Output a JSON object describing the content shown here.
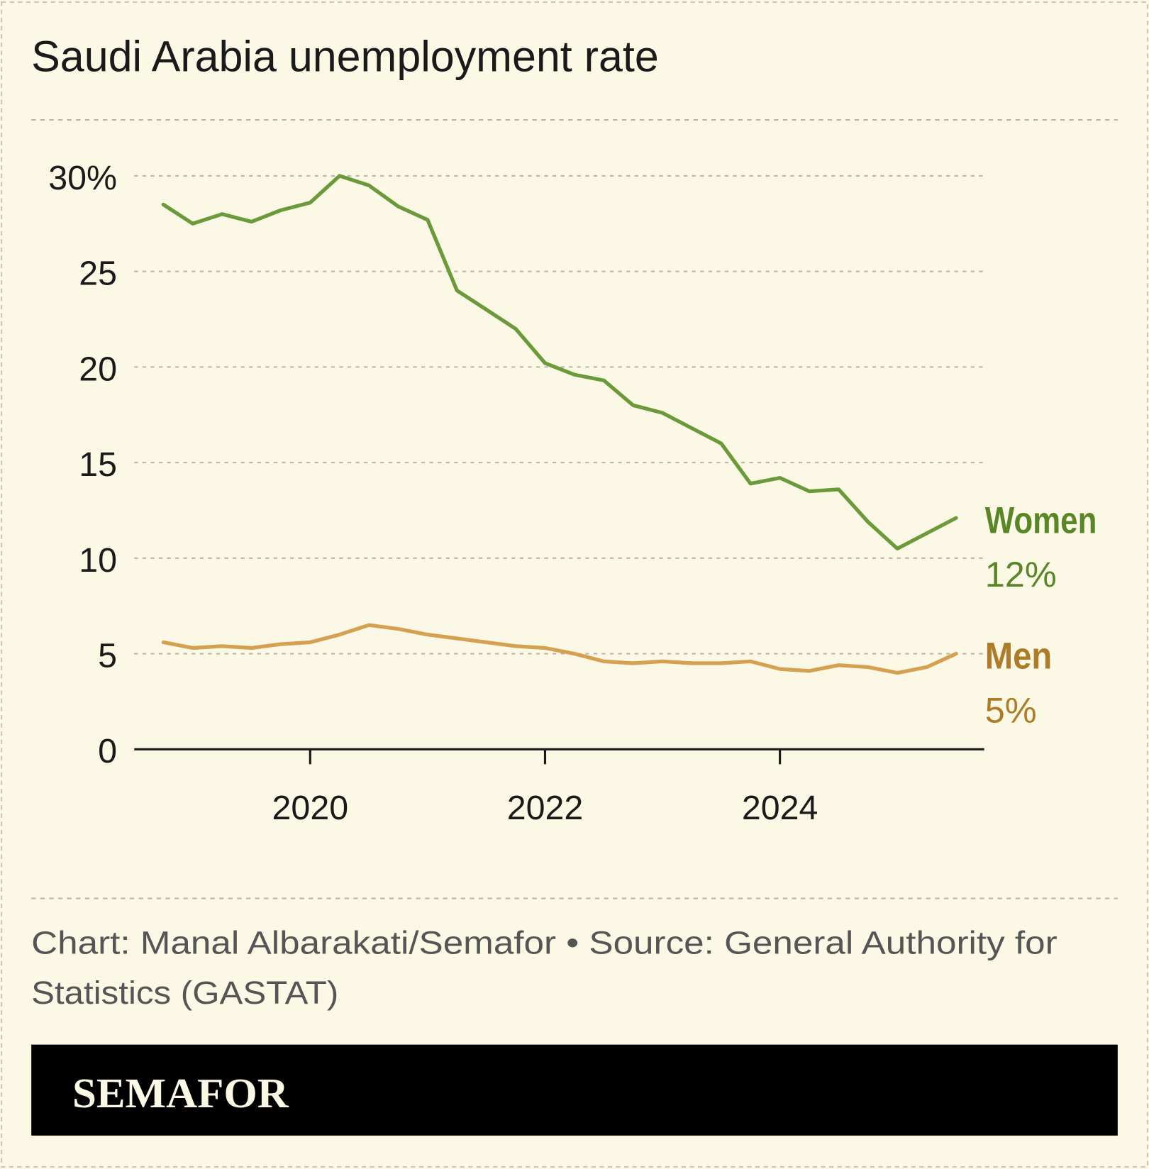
{
  "colors": {
    "background": "#fbf8e6",
    "women": "#6b9a3a",
    "women_label": "#5b8628",
    "men": "#d5a04f",
    "men_label": "#b07b28",
    "grid": "#b8b6a8",
    "axis": "#1a1a1a",
    "footer_bar": "#000000",
    "logo": "#fbf8e6"
  },
  "chart_data": {
    "type": "line",
    "title": "Saudi Arabia unemployment rate",
    "xlabel": "",
    "ylabel": "",
    "x_ticks": [
      "2020",
      "2022",
      "2024"
    ],
    "y_ticks": [
      "0",
      "5",
      "10",
      "15",
      "20",
      "25",
      "30%"
    ],
    "ylim": [
      0,
      30
    ],
    "xlim": [
      "2018-Q3",
      "2025-Q3"
    ],
    "grid": true,
    "x": [
      "2018-Q4",
      "2019-Q1",
      "2019-Q2",
      "2019-Q3",
      "2019-Q4",
      "2020-Q1",
      "2020-Q2",
      "2020-Q3",
      "2020-Q4",
      "2021-Q1",
      "2021-Q2",
      "2021-Q3",
      "2021-Q4",
      "2022-Q1",
      "2022-Q2",
      "2022-Q3",
      "2022-Q4",
      "2023-Q1",
      "2023-Q2",
      "2023-Q3",
      "2023-Q4",
      "2024-Q1",
      "2024-Q2",
      "2024-Q3",
      "2024-Q4",
      "2025-Q1",
      "2025-Q2",
      "2025-Q3"
    ],
    "series": [
      {
        "name": "Women",
        "end_label": "12%",
        "color": "#6b9a3a",
        "values": [
          28.5,
          27.5,
          28.0,
          27.6,
          28.2,
          28.6,
          30.0,
          29.5,
          28.4,
          27.7,
          24.0,
          23.0,
          22.0,
          20.2,
          19.6,
          19.3,
          18.0,
          17.6,
          16.8,
          16.0,
          13.9,
          14.2,
          13.5,
          13.6,
          11.9,
          10.5,
          11.3,
          12.1
        ]
      },
      {
        "name": "Men",
        "end_label": "5%",
        "color": "#d5a04f",
        "values": [
          5.6,
          5.3,
          5.4,
          5.3,
          5.5,
          5.6,
          6.0,
          6.5,
          6.3,
          6.0,
          5.8,
          5.6,
          5.4,
          5.3,
          5.0,
          4.6,
          4.5,
          4.6,
          4.5,
          4.5,
          4.6,
          4.2,
          4.1,
          4.4,
          4.3,
          4.0,
          4.3,
          5.0
        ]
      }
    ]
  },
  "footer": {
    "credit_line1": "Chart: Manal Albarakati/Semafor • Source: General Authority for",
    "credit_line2": "Statistics (GASTAT)",
    "logo_text": "SEMAFOR"
  }
}
